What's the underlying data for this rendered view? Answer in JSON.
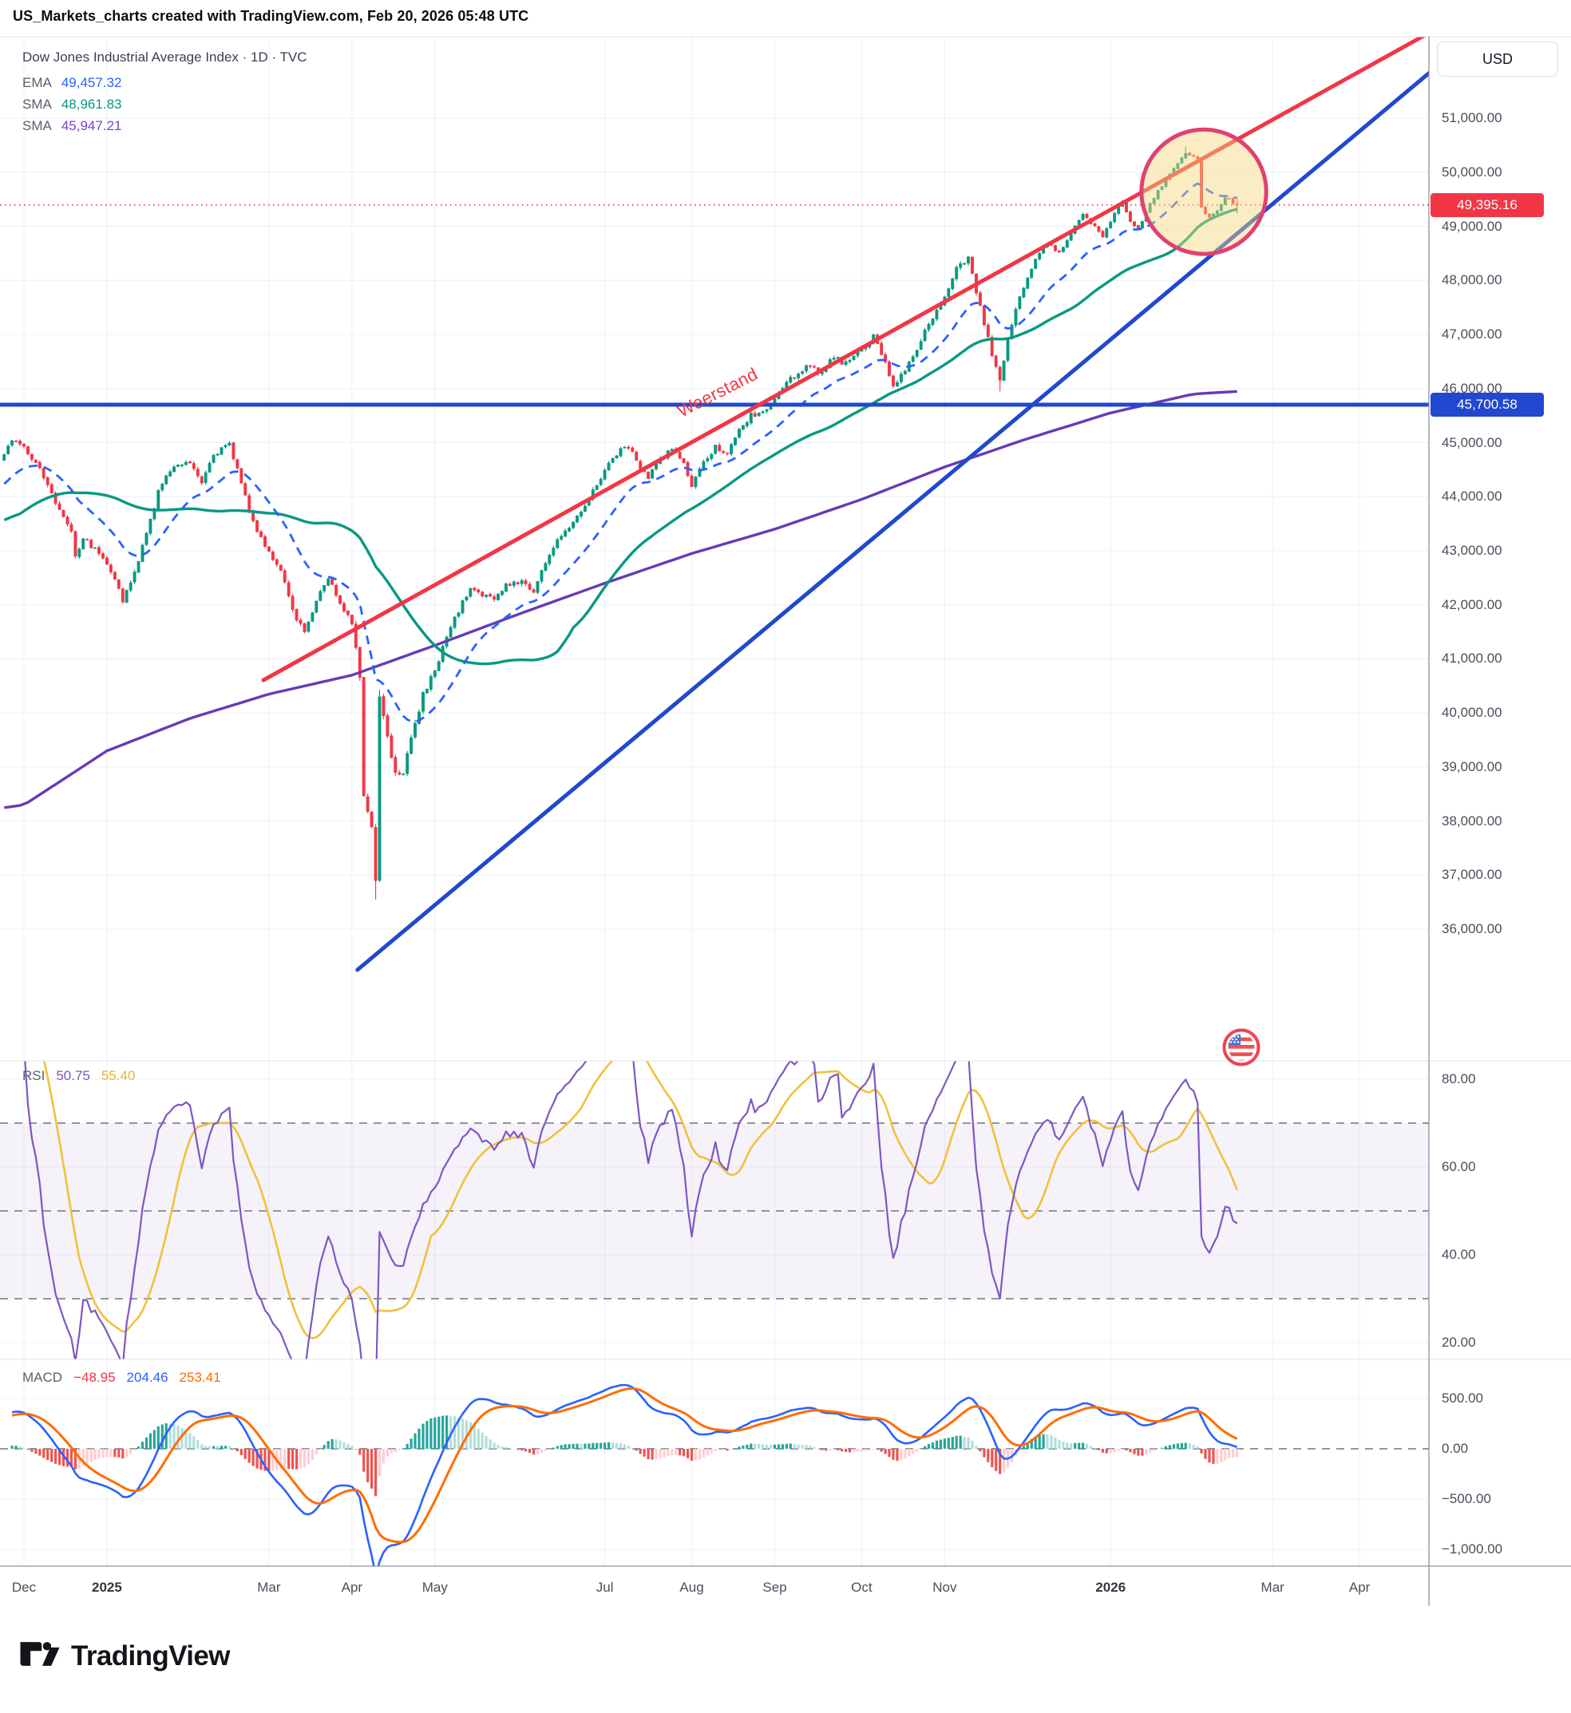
{
  "header": {
    "title": "US_Markets_charts created with TradingView.com, Feb 20, 2026 05:48 UTC"
  },
  "symbol": {
    "title": "Dow Jones Industrial Average Index · 1D · TVC"
  },
  "legend": {
    "ema": {
      "label": "EMA",
      "value": "49,457.32",
      "color": "#2962ff"
    },
    "sma50": {
      "label": "SMA",
      "value": "48,961.83",
      "color": "#089981"
    },
    "sma200": {
      "label": "SMA",
      "value": "45,947.21",
      "color": "#7b3fd6"
    }
  },
  "price_axis": {
    "currency": "USD",
    "ticks": [
      {
        "v": 51000,
        "t": "51,000.00"
      },
      {
        "v": 50000,
        "t": "50,000.00"
      },
      {
        "v": 49000,
        "t": "49,000.00"
      },
      {
        "v": 48000,
        "t": "48,000.00"
      },
      {
        "v": 47000,
        "t": "47,000.00"
      },
      {
        "v": 46000,
        "t": "46,000.00"
      },
      {
        "v": 45000,
        "t": "45,000.00"
      },
      {
        "v": 44000,
        "t": "44,000.00"
      },
      {
        "v": 43000,
        "t": "43,000.00"
      },
      {
        "v": 42000,
        "t": "42,000.00"
      },
      {
        "v": 41000,
        "t": "41,000.00"
      },
      {
        "v": 40000,
        "t": "40,000.00"
      },
      {
        "v": 39000,
        "t": "39,000.00"
      },
      {
        "v": 38000,
        "t": "38,000.00"
      },
      {
        "v": 37000,
        "t": "37,000.00"
      },
      {
        "v": 36000,
        "t": "36,000.00"
      }
    ],
    "last_price_label": "49,395.16",
    "level_label": "45,700.58"
  },
  "time_axis": {
    "labels": [
      {
        "t": "Dec",
        "d": 0
      },
      {
        "t": "2025",
        "d": 21,
        "year": true
      },
      {
        "t": "Mar",
        "d": 62
      },
      {
        "t": "Apr",
        "d": 83
      },
      {
        "t": "May",
        "d": 104
      },
      {
        "t": "Jul",
        "d": 147
      },
      {
        "t": "Aug",
        "d": 169
      },
      {
        "t": "Sep",
        "d": 190
      },
      {
        "t": "Oct",
        "d": 212
      },
      {
        "t": "Nov",
        "d": 233
      },
      {
        "t": "2026",
        "d": 275,
        "year": true
      },
      {
        "t": "Mar",
        "d": 316
      },
      {
        "t": "Apr",
        "d": 338
      }
    ]
  },
  "rsi_pane": {
    "label": "RSI",
    "values": [
      {
        "text": "50.75",
        "color": "#7e57c2"
      },
      {
        "text": "55.40",
        "color": "#e8b62a"
      }
    ],
    "ticks": [
      {
        "v": 80,
        "t": "80.00"
      },
      {
        "v": 60,
        "t": "60.00"
      },
      {
        "v": 40,
        "t": "40.00"
      },
      {
        "v": 20,
        "t": "20.00"
      }
    ],
    "levels": [
      70,
      50,
      30
    ]
  },
  "macd_pane": {
    "label": "MACD",
    "values": [
      {
        "text": "−48.95",
        "color": "#f23645"
      },
      {
        "text": "204.46",
        "color": "#2962ff"
      },
      {
        "text": "253.41",
        "color": "#ff6d00"
      }
    ],
    "ticks": [
      {
        "v": 500,
        "t": "500.00"
      },
      {
        "v": 0,
        "t": "0.00"
      },
      {
        "v": -500,
        "t": "−500.00"
      },
      {
        "v": -1000,
        "t": "−1,000.00"
      }
    ]
  },
  "annotations": {
    "resistance_label": {
      "text": "Weerstand",
      "color": "#f23645",
      "day": 175.6,
      "price": 45930,
      "angle": -27
    },
    "resistance_line": {
      "from": [
        60.6,
        40608
      ],
      "to": [
        356,
        52595
      ],
      "color": "#f23645"
    },
    "support_line": {
      "from": [
        84.4,
        35250
      ],
      "to": [
        356,
        51860
      ],
      "color": "#2148cf"
    },
    "circle": {
      "day": 298.6,
      "price": 49640,
      "rx_days": 15.8,
      "ry_price": 1150,
      "stroke": "#e0416f",
      "fill": "rgba(243,214,125,0.45)"
    }
  },
  "footer": {
    "brand": "TradingView"
  },
  "colors": {
    "bull": "#089981",
    "bear": "#f23645",
    "ema20": "#2962ff",
    "sma50": "#089981",
    "sma200": "#673ab7",
    "grid": "#ecf0f8",
    "pane_border": "#e0e3eb",
    "axis_border": "#8f929c",
    "last_price_line": "#f23645",
    "badge_last_bg": "#f23645",
    "badge_level_bg": "#2148cf",
    "level_line": "#2148cf",
    "rsi_line": "#7e57c2",
    "rsi_ma": "#f0c23b",
    "rsi_band_fill": "rgba(126,87,194,0.08)",
    "band_dash": "#70747f",
    "macd_line": "#2962ff",
    "macd_signal": "#ff6d00",
    "hist_up_grow": "#26a69a",
    "hist_up_fall": "#b2dfdb",
    "hist_down_grow": "#ffcdd2",
    "hist_down_fall": "#ef5350"
  },
  "chart_data": {
    "type": "candlestick",
    "symbol": "Dow Jones Industrial Average Index",
    "exchange": "TVC",
    "interval": "1D",
    "currency": "USD",
    "title": "Dow Jones Industrial Average Index · 1D · TVC",
    "last_price": 49395.16,
    "level_line_price": 45700.58,
    "y_axis": {
      "min": 33700,
      "max": 52300,
      "ticks": [
        36000,
        37000,
        38000,
        39000,
        40000,
        41000,
        42000,
        43000,
        44000,
        45000,
        46000,
        47000,
        48000,
        49000,
        50000,
        51000
      ]
    },
    "x_axis": {
      "first_bar": "2024-11-25",
      "last_bar": "2026-02-19",
      "right_edge": "2026-04-30"
    },
    "overlays": {
      "ema20": 49457.32,
      "sma50": 48961.83,
      "sma200": 45947.21
    },
    "indicators": {
      "rsi14": {
        "value": 50.75,
        "ma": 55.4,
        "bands": [
          70,
          50,
          30
        ],
        "range_ticks": [
          80,
          60,
          40,
          20
        ]
      },
      "macd": {
        "histogram": -48.95,
        "macd": 204.46,
        "signal": 253.41,
        "range_ticks": [
          500,
          0,
          -500,
          -1000
        ]
      }
    },
    "price_anchors": [
      [
        -5,
        44800
      ],
      [
        -3,
        45050
      ],
      [
        -1,
        44950
      ],
      [
        0,
        44900
      ],
      [
        3,
        44650
      ],
      [
        8,
        43900
      ],
      [
        12,
        43400
      ],
      [
        13,
        42900
      ],
      [
        15,
        43250
      ],
      [
        19,
        42950
      ],
      [
        21,
        42800
      ],
      [
        23,
        42500
      ],
      [
        25,
        42050
      ],
      [
        28,
        42600
      ],
      [
        31,
        43300
      ],
      [
        34,
        44100
      ],
      [
        38,
        44600
      ],
      [
        42,
        44650
      ],
      [
        45,
        44300
      ],
      [
        48,
        44800
      ],
      [
        52,
        44950
      ],
      [
        55,
        44300
      ],
      [
        58,
        43500
      ],
      [
        62,
        43000
      ],
      [
        65,
        42600
      ],
      [
        68,
        41900
      ],
      [
        71,
        41500
      ],
      [
        74,
        42100
      ],
      [
        77,
        42500
      ],
      [
        80,
        42050
      ],
      [
        83,
        41700
      ],
      [
        85,
        40600
      ],
      [
        86,
        38500
      ],
      [
        88,
        37900
      ],
      [
        89,
        36900
      ],
      [
        90,
        40300
      ],
      [
        92,
        39600
      ],
      [
        94,
        38900
      ],
      [
        96,
        38950
      ],
      [
        98,
        39600
      ],
      [
        101,
        40300
      ],
      [
        104,
        40800
      ],
      [
        107,
        41400
      ],
      [
        110,
        41900
      ],
      [
        113,
        42300
      ],
      [
        116,
        42200
      ],
      [
        119,
        42100
      ],
      [
        122,
        42350
      ],
      [
        126,
        42450
      ],
      [
        129,
        42250
      ],
      [
        132,
        42800
      ],
      [
        136,
        43300
      ],
      [
        140,
        43650
      ],
      [
        144,
        44100
      ],
      [
        147,
        44500
      ],
      [
        150,
        44800
      ],
      [
        153,
        44950
      ],
      [
        156,
        44500
      ],
      [
        158,
        44350
      ],
      [
        161,
        44700
      ],
      [
        164,
        44900
      ],
      [
        167,
        44600
      ],
      [
        169,
        44200
      ],
      [
        172,
        44600
      ],
      [
        175,
        44950
      ],
      [
        178,
        44800
      ],
      [
        181,
        45200
      ],
      [
        184,
        45500
      ],
      [
        187,
        45550
      ],
      [
        190,
        45800
      ],
      [
        193,
        46100
      ],
      [
        196,
        46300
      ],
      [
        199,
        46450
      ],
      [
        202,
        46250
      ],
      [
        205,
        46600
      ],
      [
        208,
        46450
      ],
      [
        212,
        46700
      ],
      [
        215,
        46950
      ],
      [
        218,
        46500
      ],
      [
        220,
        46050
      ],
      [
        223,
        46350
      ],
      [
        226,
        46750
      ],
      [
        229,
        47200
      ],
      [
        232,
        47500
      ],
      [
        236,
        48200
      ],
      [
        239,
        48450
      ],
      [
        242,
        47500
      ],
      [
        245,
        46650
      ],
      [
        247,
        46150
      ],
      [
        249,
        46900
      ],
      [
        252,
        47700
      ],
      [
        256,
        48400
      ],
      [
        259,
        48700
      ],
      [
        262,
        48500
      ],
      [
        265,
        48900
      ],
      [
        268,
        49200
      ],
      [
        271,
        49000
      ],
      [
        273,
        48800
      ],
      [
        275,
        49100
      ],
      [
        278,
        49450
      ],
      [
        280,
        49100
      ],
      [
        282,
        48950
      ],
      [
        284,
        49300
      ],
      [
        287,
        49650
      ],
      [
        290,
        49950
      ],
      [
        292,
        50150
      ],
      [
        294,
        50350
      ],
      [
        296,
        50300
      ],
      [
        297,
        50250
      ],
      [
        298,
        49350
      ],
      [
        300,
        49150
      ],
      [
        302,
        49300
      ],
      [
        304,
        49550
      ],
      [
        306,
        49430
      ],
      [
        307,
        49395.16
      ]
    ],
    "sma200_anchors": [
      [
        -5,
        38250
      ],
      [
        0,
        38300
      ],
      [
        21,
        39300
      ],
      [
        42,
        39900
      ],
      [
        62,
        40350
      ],
      [
        83,
        40700
      ],
      [
        104,
        41250
      ],
      [
        126,
        41850
      ],
      [
        147,
        42400
      ],
      [
        169,
        42950
      ],
      [
        190,
        43400
      ],
      [
        212,
        43950
      ],
      [
        233,
        44550
      ],
      [
        253,
        45050
      ],
      [
        275,
        45550
      ],
      [
        296,
        45900
      ],
      [
        307,
        45947
      ]
    ],
    "pinned": {
      "lows": [
        [
          89,
          36550
        ],
        [
          247,
          45950
        ],
        [
          307,
          49235
        ]
      ],
      "highs": [
        [
          90,
          40430
        ],
        [
          294,
          50480
        ],
        [
          307,
          49530
        ]
      ],
      "exact_close_days": [
        13,
        89,
        90,
        294,
        296,
        297,
        298,
        307
      ]
    }
  }
}
